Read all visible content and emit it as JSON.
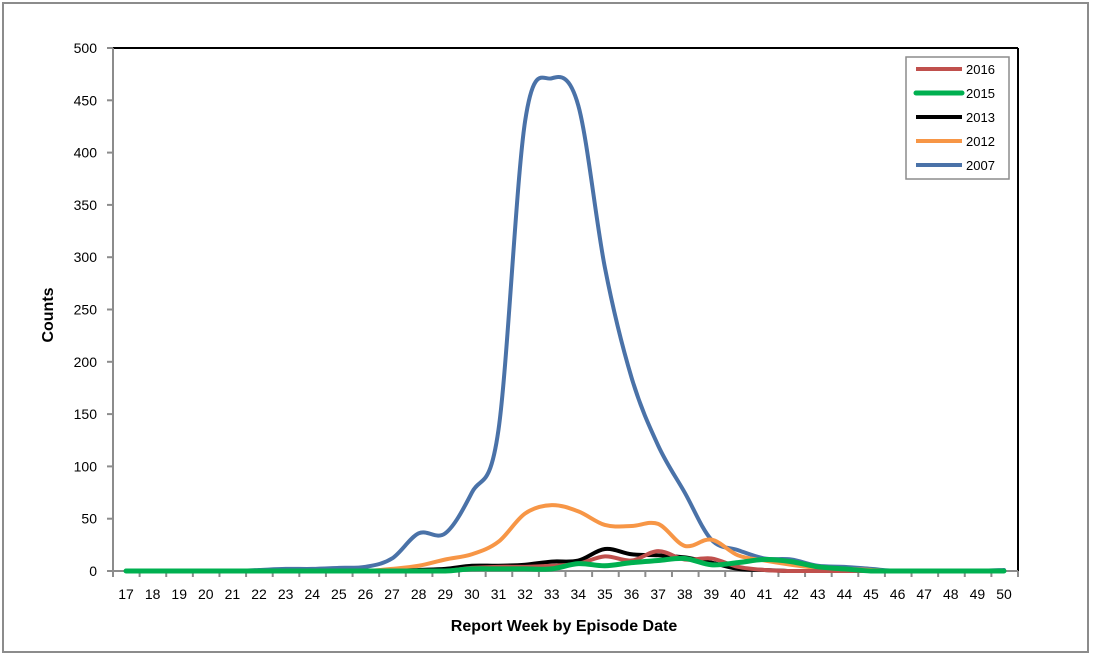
{
  "chart_data": {
    "type": "line",
    "title": "",
    "xlabel": "Report Week by Episode Date",
    "ylabel": "Counts",
    "ylim": [
      0,
      500
    ],
    "yticks": [
      0,
      50,
      100,
      150,
      200,
      250,
      300,
      350,
      400,
      450,
      500
    ],
    "grid": false,
    "legend_position": "top-right",
    "x": [
      17,
      18,
      19,
      20,
      21,
      22,
      23,
      24,
      25,
      26,
      27,
      28,
      29,
      30,
      31,
      32,
      33,
      34,
      35,
      36,
      37,
      38,
      39,
      40,
      41,
      42,
      43,
      44,
      45,
      46,
      47,
      48,
      49,
      50
    ],
    "series": [
      {
        "name": "2016",
        "color": "#c0504d",
        "width": 4,
        "values": [
          0,
          0,
          0,
          0,
          0,
          0,
          0,
          0,
          0,
          0,
          0,
          0,
          0,
          3,
          4,
          4,
          5,
          7,
          14,
          10,
          19,
          11,
          12,
          4,
          1,
          0,
          0,
          0,
          0,
          0,
          0,
          0,
          0,
          0
        ]
      },
      {
        "name": "2015",
        "color": "#00b050",
        "width": 5,
        "values": [
          0,
          0,
          0,
          0,
          0,
          0,
          0,
          0,
          0,
          0,
          0,
          0,
          0,
          2,
          2,
          2,
          2,
          7,
          5,
          8,
          10,
          12,
          6,
          8,
          11,
          9,
          4,
          2,
          0,
          0,
          0,
          0,
          0,
          0
        ]
      },
      {
        "name": "2013",
        "color": "#000000",
        "width": 4,
        "values": [
          0,
          0,
          0,
          0,
          0,
          0,
          0,
          0,
          0,
          0,
          0,
          1,
          2,
          5,
          5,
          6,
          9,
          10,
          21,
          16,
          15,
          13,
          8,
          2,
          1,
          0,
          0,
          0,
          0,
          0,
          0,
          0,
          0,
          0
        ]
      },
      {
        "name": "2012",
        "color": "#f79646",
        "width": 4,
        "values": [
          0,
          0,
          0,
          0,
          0,
          0,
          0,
          0,
          0,
          0,
          2,
          5,
          11,
          16,
          28,
          55,
          63,
          57,
          44,
          43,
          45,
          24,
          30,
          15,
          10,
          6,
          3,
          2,
          1,
          0,
          0,
          0,
          0,
          0
        ]
      },
      {
        "name": "2007",
        "color": "#4a72a8",
        "width": 4,
        "values": [
          0,
          0,
          0,
          0,
          0,
          1,
          2,
          2,
          3,
          4,
          12,
          36,
          36,
          75,
          135,
          430,
          471,
          445,
          290,
          185,
          120,
          75,
          30,
          20,
          12,
          11,
          5,
          4,
          2,
          0,
          0,
          0,
          0,
          1
        ]
      }
    ]
  },
  "legend": {
    "items": [
      {
        "label": "2016",
        "color": "#c0504d"
      },
      {
        "label": "2015",
        "color": "#00b050"
      },
      {
        "label": "2013",
        "color": "#000000"
      },
      {
        "label": "2012",
        "color": "#f79646"
      },
      {
        "label": "2007",
        "color": "#4a72a8"
      }
    ]
  },
  "axes": {
    "x_title": "Report Week by Episode Date",
    "y_title": "Counts"
  }
}
